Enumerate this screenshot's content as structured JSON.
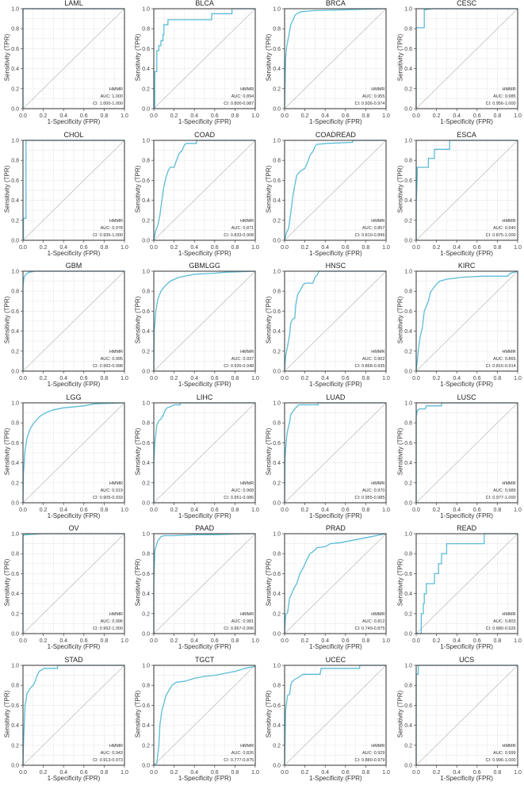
{
  "figure": {
    "gene": "HMMR",
    "xlabel": "1-Specificity (FPR)",
    "ylabel": "Sensitivity (TPR)",
    "ticks": [
      "0.0",
      "0.2",
      "0.4",
      "0.6",
      "0.8",
      "1.0"
    ],
    "curve_color": "#5bbcd6",
    "diagonal_color": "#c0c0c0",
    "frame_color": "#444444"
  },
  "chart_data": [
    {
      "type": "line",
      "title": "LAML",
      "auc": "AUC: 1.000",
      "ci": "CI: 1.000-1.000",
      "xlim": [
        0,
        1
      ],
      "ylim": [
        0,
        1
      ],
      "x": [
        0,
        0,
        1
      ],
      "y": [
        0,
        1,
        1
      ]
    },
    {
      "type": "line",
      "title": "BLCA",
      "auc": "AUC: 0.894",
      "ci": "CI: 0.800-0.987",
      "xlim": [
        0,
        1
      ],
      "ylim": [
        0,
        1
      ],
      "x": [
        0,
        0.01,
        0.01,
        0.03,
        0.03,
        0.05,
        0.05,
        0.07,
        0.07,
        0.09,
        0.09,
        0.1,
        0.1,
        0.14,
        0.14,
        0.57,
        0.57,
        0.77,
        0.77,
        1
      ],
      "y": [
        0,
        0,
        0.37,
        0.37,
        0.58,
        0.58,
        0.63,
        0.63,
        0.68,
        0.68,
        0.74,
        0.74,
        0.84,
        0.84,
        0.89,
        0.89,
        0.95,
        0.95,
        1,
        1
      ]
    },
    {
      "type": "line",
      "title": "BRCA",
      "auc": "AUC: 0.955",
      "ci": "CI: 0.936-0.974",
      "xlim": [
        0,
        1
      ],
      "ylim": [
        0,
        1
      ],
      "x": [
        0,
        0.01,
        0.02,
        0.04,
        0.06,
        0.08,
        0.1,
        0.12,
        0.16,
        0.28,
        0.45,
        0.8,
        1
      ],
      "y": [
        0,
        0.5,
        0.62,
        0.72,
        0.84,
        0.88,
        0.93,
        0.95,
        0.97,
        0.98,
        0.985,
        0.995,
        1
      ]
    },
    {
      "type": "line",
      "title": "CESC",
      "auc": "AUC: 0.985",
      "ci": "CI: 0.956-1.000",
      "xlim": [
        0,
        1
      ],
      "ylim": [
        0,
        1
      ],
      "x": [
        0,
        0,
        0.08,
        0.08,
        0.16,
        1
      ],
      "y": [
        0,
        0.81,
        0.81,
        0.99,
        1,
        1
      ]
    },
    {
      "type": "line",
      "title": "CHOL",
      "auc": "AUC: 0.978",
      "ci": "CI: 0.935-1.000",
      "xlim": [
        0,
        1
      ],
      "ylim": [
        0,
        1
      ],
      "x": [
        0,
        0.005,
        0.005,
        0.03,
        0.03,
        1
      ],
      "y": [
        0,
        0,
        0.22,
        0.22,
        1,
        1
      ]
    },
    {
      "type": "line",
      "title": "COAD",
      "auc": "AUC: 0.871",
      "ci": "CI: 0.833-0.908",
      "xlim": [
        0,
        1
      ],
      "ylim": [
        0,
        1
      ],
      "x": [
        0,
        0.02,
        0.04,
        0.06,
        0.08,
        0.1,
        0.12,
        0.14,
        0.16,
        0.2,
        0.22,
        0.25,
        0.28,
        0.3,
        0.32,
        0.42,
        0.42,
        1
      ],
      "y": [
        0,
        0.1,
        0.15,
        0.25,
        0.4,
        0.54,
        0.63,
        0.69,
        0.73,
        0.73,
        0.79,
        0.87,
        0.9,
        0.95,
        0.97,
        0.97,
        1,
        1
      ]
    },
    {
      "type": "line",
      "title": "COADREAD",
      "auc": "AUC: 0.857",
      "ci": "CI: 0.819-0.896",
      "xlim": [
        0,
        1
      ],
      "ylim": [
        0,
        1
      ],
      "x": [
        0,
        0.02,
        0.04,
        0.06,
        0.08,
        0.1,
        0.12,
        0.15,
        0.2,
        0.23,
        0.25,
        0.28,
        0.3,
        0.32,
        0.42,
        0.67,
        0.67,
        1
      ],
      "y": [
        0,
        0.08,
        0.12,
        0.27,
        0.43,
        0.55,
        0.65,
        0.69,
        0.72,
        0.79,
        0.85,
        0.89,
        0.94,
        0.96,
        0.97,
        0.98,
        1,
        1
      ]
    },
    {
      "type": "line",
      "title": "ESCA",
      "auc": "AUC: 0.940",
      "ci": "CI: 0.875-1.000",
      "xlim": [
        0,
        1
      ],
      "ylim": [
        0,
        1
      ],
      "x": [
        0,
        0,
        0.01,
        0.01,
        0.12,
        0.12,
        0.18,
        0.18,
        0.33,
        0.33,
        1
      ],
      "y": [
        0,
        0.36,
        0.64,
        0.73,
        0.73,
        0.82,
        0.82,
        0.91,
        0.91,
        1,
        1
      ]
    },
    {
      "type": "line",
      "title": "GBM",
      "auc": "AUC: 0.995",
      "ci": "CI: 0.992-0.998",
      "xlim": [
        0,
        1
      ],
      "ylim": [
        0,
        1
      ],
      "x": [
        0,
        0,
        0.01,
        0.03,
        0.06,
        0.12,
        1
      ],
      "y": [
        0,
        0.85,
        0.94,
        0.97,
        0.99,
        1,
        1
      ]
    },
    {
      "type": "line",
      "title": "GBMLGG",
      "auc": "AUC: 0.937",
      "ci": "CI: 0.926-0.948",
      "xlim": [
        0,
        1
      ],
      "ylim": [
        0,
        1
      ],
      "x": [
        0,
        0.005,
        0.02,
        0.04,
        0.07,
        0.1,
        0.16,
        0.25,
        0.4,
        0.6,
        0.7,
        1
      ],
      "y": [
        0,
        0.4,
        0.6,
        0.72,
        0.8,
        0.84,
        0.9,
        0.94,
        0.97,
        0.98,
        0.99,
        1
      ]
    },
    {
      "type": "line",
      "title": "HNSC",
      "auc": "AUC: 0.902",
      "ci": "CI: 0.868-0.935",
      "xlim": [
        0,
        1
      ],
      "ylim": [
        0,
        1
      ],
      "x": [
        0,
        0.01,
        0.03,
        0.04,
        0.05,
        0.06,
        0.08,
        0.1,
        0.11,
        0.13,
        0.15,
        0.18,
        0.2,
        0.28,
        0.3,
        0.32,
        0.34,
        1
      ],
      "y": [
        0,
        0.15,
        0.25,
        0.31,
        0.37,
        0.48,
        0.52,
        0.53,
        0.66,
        0.77,
        0.8,
        0.86,
        0.88,
        0.88,
        0.94,
        0.96,
        1,
        1
      ]
    },
    {
      "type": "line",
      "title": "KIRC",
      "auc": "AUC: 0.865",
      "ci": "CI: 0.816-0.914",
      "xlim": [
        0,
        1
      ],
      "ylim": [
        0,
        1
      ],
      "x": [
        0,
        0.02,
        0.04,
        0.06,
        0.08,
        0.1,
        0.12,
        0.14,
        0.17,
        0.2,
        0.23,
        0.3,
        0.45,
        0.65,
        0.9,
        0.93,
        1
      ],
      "y": [
        0,
        0.2,
        0.35,
        0.43,
        0.6,
        0.65,
        0.7,
        0.79,
        0.83,
        0.87,
        0.9,
        0.92,
        0.94,
        0.95,
        0.95,
        0.98,
        1
      ]
    },
    {
      "type": "line",
      "title": "LGG",
      "auc": "AUC: 0.919",
      "ci": "CI: 0.905-0.933",
      "xlim": [
        0,
        1
      ],
      "ylim": [
        0,
        1
      ],
      "x": [
        0,
        0.005,
        0.02,
        0.04,
        0.07,
        0.1,
        0.16,
        0.22,
        0.3,
        0.4,
        0.6,
        0.7,
        1
      ],
      "y": [
        0,
        0.3,
        0.52,
        0.65,
        0.74,
        0.79,
        0.86,
        0.9,
        0.93,
        0.95,
        0.97,
        0.99,
        1
      ]
    },
    {
      "type": "line",
      "title": "LIHC",
      "auc": "AUC: 0.968",
      "ci": "CI: 0.951-0.986",
      "xlim": [
        0,
        1
      ],
      "ylim": [
        0,
        1
      ],
      "x": [
        0,
        0,
        0.01,
        0.03,
        0.05,
        0.07,
        0.09,
        0.11,
        0.13,
        0.16,
        0.2,
        0.26,
        0.26,
        1
      ],
      "y": [
        0,
        0.38,
        0.6,
        0.78,
        0.82,
        0.84,
        0.87,
        0.92,
        0.95,
        0.96,
        0.98,
        0.98,
        1,
        1
      ]
    },
    {
      "type": "line",
      "title": "LUAD",
      "auc": "AUC: 0.970",
      "ci": "CI: 0.955-0.985",
      "xlim": [
        0,
        1
      ],
      "ylim": [
        0,
        1
      ],
      "x": [
        0,
        0.005,
        0.02,
        0.03,
        0.05,
        0.06,
        0.08,
        0.1,
        0.12,
        0.14,
        0.33,
        0.33,
        1
      ],
      "y": [
        0,
        0.45,
        0.66,
        0.72,
        0.81,
        0.88,
        0.91,
        0.94,
        0.96,
        0.98,
        0.98,
        1,
        1
      ]
    },
    {
      "type": "line",
      "title": "LUSC",
      "auc": "AUC: 0.989",
      "ci": "CI: 0.977-1.000",
      "xlim": [
        0,
        1
      ],
      "ylim": [
        0,
        1
      ],
      "x": [
        0,
        0,
        0.01,
        0.03,
        0.09,
        0.1,
        0.25,
        0.25,
        1
      ],
      "y": [
        0,
        0.86,
        0.92,
        0.94,
        0.94,
        0.97,
        0.97,
        1,
        1
      ]
    },
    {
      "type": "line",
      "title": "OV",
      "auc": "AUC: 0.996",
      "ci": "CI: 0.992-1.000",
      "xlim": [
        0,
        1
      ],
      "ylim": [
        0,
        1
      ],
      "x": [
        0,
        0,
        0.02,
        0.2,
        1
      ],
      "y": [
        0,
        0.98,
        0.99,
        1,
        1
      ]
    },
    {
      "type": "line",
      "title": "PAAD",
      "auc": "AUC: 0.981",
      "ci": "CI: 0.967-0.996",
      "xlim": [
        0,
        1
      ],
      "ylim": [
        0,
        1
      ],
      "x": [
        0,
        0,
        0.01,
        0.02,
        0.04,
        0.07,
        0.1,
        0.2,
        0.4,
        0.6,
        0.9,
        1
      ],
      "y": [
        0,
        0.5,
        0.82,
        0.87,
        0.93,
        0.97,
        0.98,
        0.98,
        0.99,
        0.99,
        1,
        1
      ]
    },
    {
      "type": "line",
      "title": "PRAD",
      "auc": "AUC: 0.812",
      "ci": "CI: 0.749-0.875",
      "xlim": [
        0,
        1
      ],
      "ylim": [
        0,
        1
      ],
      "x": [
        0,
        0.01,
        0.03,
        0.05,
        0.07,
        0.09,
        0.12,
        0.15,
        0.18,
        0.21,
        0.25,
        0.28,
        0.32,
        0.4,
        0.45,
        0.55,
        0.65,
        0.75,
        0.85,
        0.9,
        1
      ],
      "y": [
        0,
        0.19,
        0.21,
        0.36,
        0.4,
        0.45,
        0.5,
        0.6,
        0.65,
        0.72,
        0.8,
        0.82,
        0.86,
        0.87,
        0.9,
        0.91,
        0.93,
        0.95,
        0.97,
        0.98,
        1
      ]
    },
    {
      "type": "line",
      "title": "READ",
      "auc": "AUC: 0.803",
      "ci": "CI: 0.680-0.926",
      "xlim": [
        0,
        1
      ],
      "ylim": [
        0,
        1
      ],
      "x": [
        0,
        0.05,
        0.05,
        0.07,
        0.07,
        0.08,
        0.08,
        0.1,
        0.1,
        0.18,
        0.18,
        0.22,
        0.22,
        0.25,
        0.25,
        0.3,
        0.3,
        0.67,
        0.67,
        1
      ],
      "y": [
        0,
        0,
        0.2,
        0.2,
        0.3,
        0.3,
        0.4,
        0.4,
        0.5,
        0.5,
        0.6,
        0.6,
        0.7,
        0.7,
        0.8,
        0.8,
        0.9,
        0.9,
        1,
        1
      ]
    },
    {
      "type": "line",
      "title": "STAD",
      "auc": "AUC: 0.943",
      "ci": "CI: 0.913-0.973",
      "xlim": [
        0,
        1
      ],
      "ylim": [
        0,
        1
      ],
      "x": [
        0,
        0.005,
        0.01,
        0.02,
        0.03,
        0.04,
        0.06,
        0.08,
        0.1,
        0.12,
        0.14,
        0.16,
        0.21,
        0.34,
        0.34,
        1
      ],
      "y": [
        0,
        0.2,
        0.35,
        0.6,
        0.65,
        0.72,
        0.75,
        0.78,
        0.8,
        0.84,
        0.9,
        0.94,
        0.97,
        0.97,
        1,
        1
      ]
    },
    {
      "type": "line",
      "title": "TGCT",
      "auc": "AUC: 0.826",
      "ci": "CI: 0.777-0.875",
      "xlim": [
        0,
        1
      ],
      "ylim": [
        0,
        1
      ],
      "x": [
        0,
        0.03,
        0.05,
        0.06,
        0.08,
        0.1,
        0.12,
        0.15,
        0.18,
        0.22,
        0.3,
        0.4,
        0.5,
        0.6,
        0.7,
        0.8,
        0.9,
        1
      ],
      "y": [
        0,
        0.02,
        0.2,
        0.4,
        0.55,
        0.62,
        0.7,
        0.75,
        0.8,
        0.83,
        0.84,
        0.87,
        0.89,
        0.9,
        0.92,
        0.94,
        0.97,
        0.99
      ]
    },
    {
      "type": "line",
      "title": "UCEC",
      "auc": "AUC: 0.929",
      "ci": "CI: 0.880-0.979",
      "xlim": [
        0,
        1
      ],
      "ylim": [
        0,
        1
      ],
      "x": [
        0,
        0.005,
        0.01,
        0.02,
        0.03,
        0.05,
        0.06,
        0.07,
        0.1,
        0.14,
        0.18,
        0.35,
        0.36,
        0.74,
        0.74,
        1
      ],
      "y": [
        0,
        0.25,
        0.55,
        0.63,
        0.7,
        0.71,
        0.8,
        0.83,
        0.86,
        0.88,
        0.91,
        0.91,
        0.97,
        0.97,
        1,
        1
      ]
    },
    {
      "type": "line",
      "title": "UCS",
      "auc": "AUC: 0.999",
      "ci": "CI: 0.996-1.000",
      "xlim": [
        0,
        1
      ],
      "ylim": [
        0,
        1
      ],
      "x": [
        0,
        0,
        0.02,
        0.02,
        1
      ],
      "y": [
        0,
        0.91,
        0.91,
        1,
        1
      ]
    }
  ]
}
